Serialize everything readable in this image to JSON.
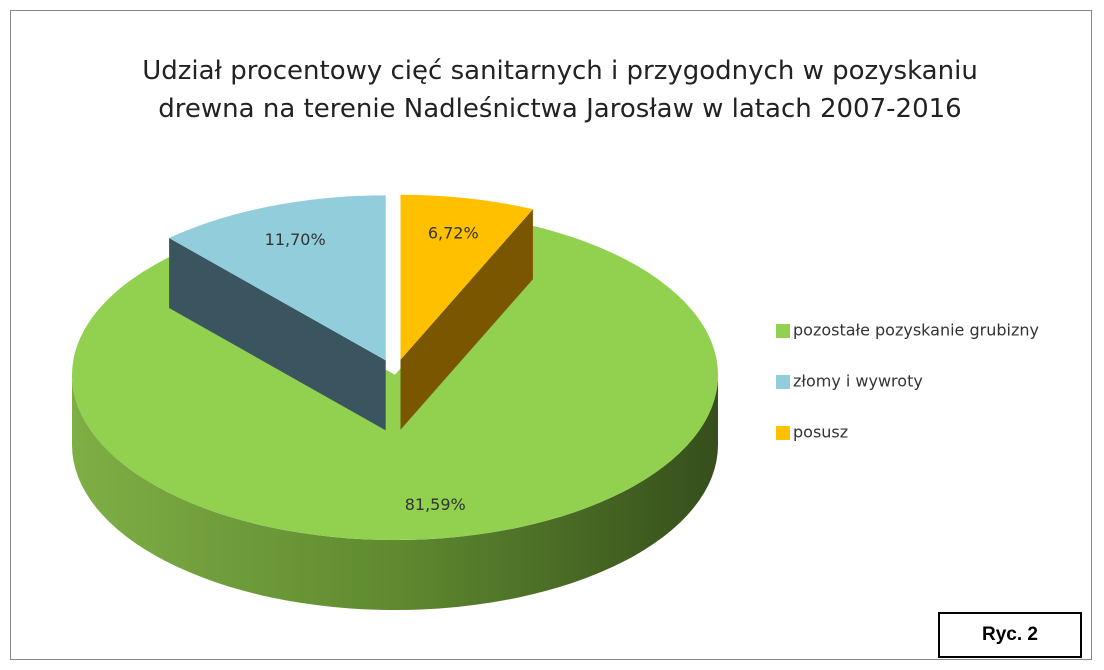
{
  "chart_data": {
    "type": "pie",
    "title": "Udział procentowy cięć sanitarnych i przygodnych w pozyskaniu drewna na terenie Nadleśnictwa Jarosław w latach 2007-2016",
    "categories": [
      "pozostałe pozyskanie grubizny",
      "złomy i wywroty",
      "posusz"
    ],
    "values": [
      81.59,
      11.7,
      6.72
    ],
    "value_labels": [
      "81,59%",
      "11,70%",
      "6,72%"
    ],
    "colors": [
      "#92d050",
      "#92cddc",
      "#ffc000"
    ],
    "legend": "right",
    "annotation": "Ryc. 2"
  }
}
